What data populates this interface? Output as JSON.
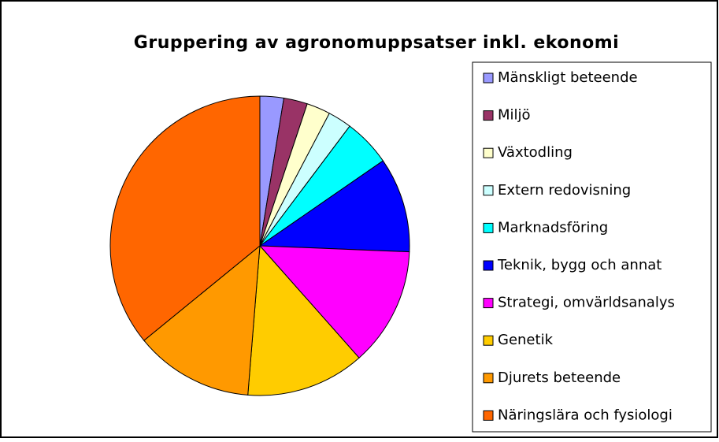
{
  "chart_data": {
    "type": "pie",
    "title": "Gruppering av agronomuppsatser inkl. ekonomi",
    "categories": [
      "Mänskligt beteende",
      "Miljö",
      "Växtodling",
      "Extern redovisning",
      "Marknadsföring",
      "Teknik, bygg och annat",
      "Strategi, omvärldsanalys",
      "Genetik",
      "Djurets beteende",
      "Näringslära och fysiologi"
    ],
    "values": [
      1,
      1,
      1,
      1,
      2,
      4,
      5,
      5,
      5,
      14
    ],
    "colors": [
      "#9999ff",
      "#993366",
      "#ffffcc",
      "#ccffff",
      "#00ffff",
      "#0000ff",
      "#ff00ff",
      "#ffcc00",
      "#ff9900",
      "#ff6600"
    ],
    "legend": "right"
  }
}
